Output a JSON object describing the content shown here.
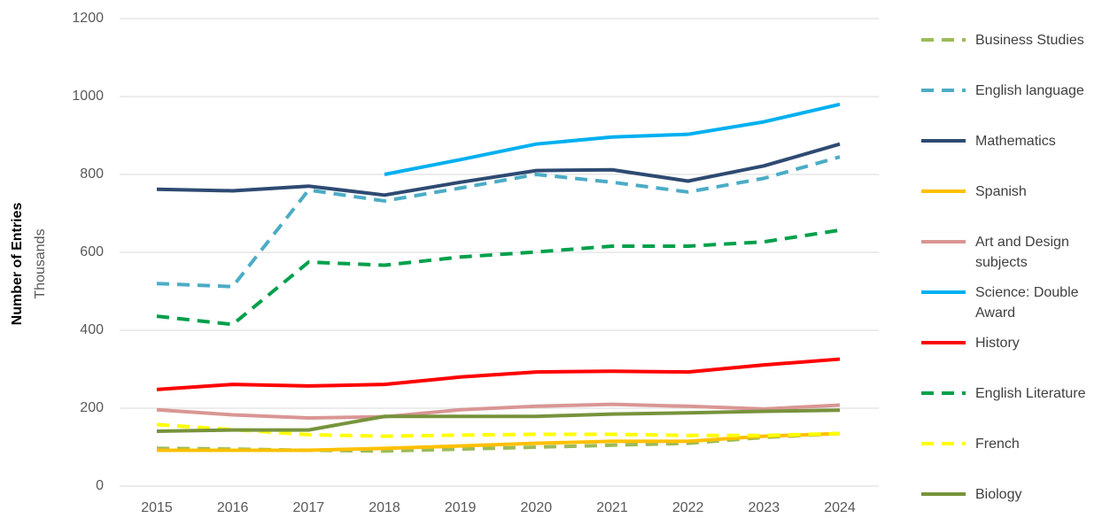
{
  "chart_data": {
    "type": "line",
    "y_label": "Number of Entries",
    "y_unit_label": "Thousands",
    "categories": [
      "2015",
      "2016",
      "2017",
      "2018",
      "2019",
      "2020",
      "2021",
      "2022",
      "2023",
      "2024"
    ],
    "ylim": [
      0,
      1200
    ],
    "yticks": [
      0,
      200,
      400,
      600,
      800,
      1000,
      1200
    ],
    "grid": true,
    "series": [
      {
        "name": "Business Studies",
        "color": "#9bbb59",
        "dashed": true,
        "values": [
          97,
          95,
          92,
          90,
          95,
          100,
          105,
          110,
          125,
          135
        ]
      },
      {
        "name": "English language",
        "color": "#4bacc6",
        "dashed": true,
        "values": [
          520,
          512,
          760,
          732,
          765,
          800,
          780,
          755,
          790,
          845
        ]
      },
      {
        "name": "Mathematics",
        "color": "#2e4a72",
        "dashed": false,
        "values": [
          762,
          758,
          770,
          747,
          780,
          810,
          812,
          783,
          822,
          878
        ]
      },
      {
        "name": "Spanish",
        "color": "#ffc000",
        "dashed": false,
        "values": [
          92,
          92,
          92,
          97,
          103,
          110,
          115,
          115,
          128,
          135
        ]
      },
      {
        "name": "Art and Design subjects",
        "color": "#d99694",
        "dashed": false,
        "values": [
          196,
          183,
          175,
          178,
          196,
          205,
          210,
          205,
          198,
          208
        ]
      },
      {
        "name": "Science: Double Award",
        "color": "#00b0f0",
        "dashed": false,
        "values": [
          null,
          null,
          null,
          800,
          838,
          878,
          896,
          903,
          935,
          980
        ]
      },
      {
        "name": "History",
        "color": "#ff0000",
        "dashed": false,
        "values": [
          248,
          261,
          257,
          261,
          280,
          293,
          295,
          293,
          311,
          326
        ]
      },
      {
        "name": "English Literature",
        "color": "#00a04b",
        "dashed": true,
        "values": [
          436,
          415,
          575,
          567,
          588,
          601,
          616,
          616,
          627,
          657
        ]
      },
      {
        "name": "French",
        "color": "#ffff00",
        "dashed": true,
        "values": [
          158,
          145,
          132,
          128,
          131,
          133,
          133,
          130,
          130,
          135
        ]
      },
      {
        "name": "Biology",
        "color": "#77933c",
        "dashed": false,
        "values": [
          141,
          144,
          144,
          179,
          179,
          179,
          185,
          188,
          192,
          195
        ]
      }
    ]
  }
}
